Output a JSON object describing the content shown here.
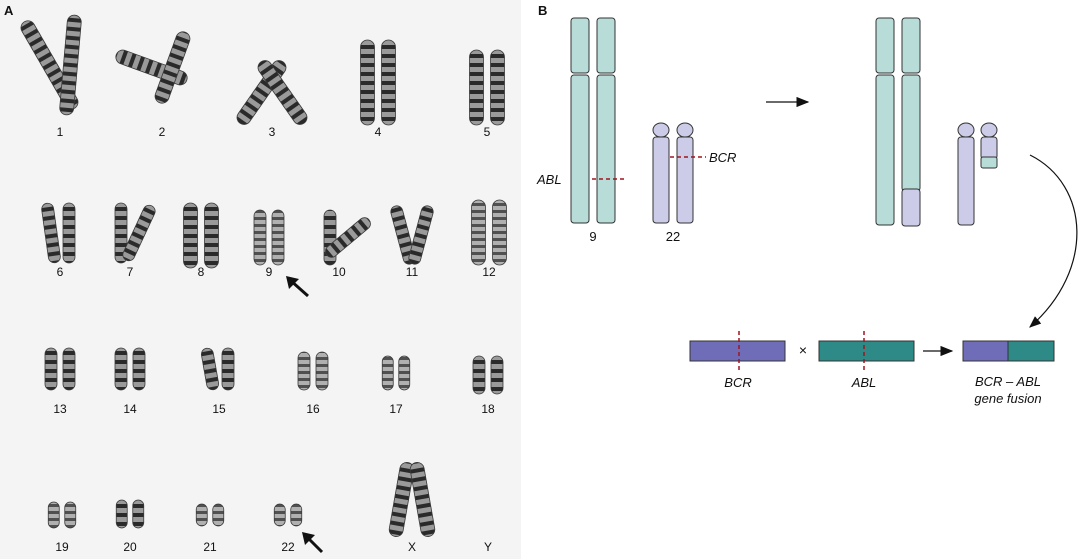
{
  "panel_a": {
    "label": "A",
    "chromosomes": [
      "1",
      "2",
      "3",
      "4",
      "5",
      "6",
      "7",
      "8",
      "9",
      "10",
      "11",
      "12",
      "13",
      "14",
      "15",
      "16",
      "17",
      "18",
      "19",
      "20",
      "21",
      "22",
      "X",
      "Y"
    ]
  },
  "panel_b": {
    "label": "B",
    "abl_label": "ABL",
    "bcr_label": "BCR",
    "chr9_label": "9",
    "chr22_label": "22",
    "times_symbol": "×",
    "bcr_gene_label": "BCR",
    "abl_gene_label": "ABL",
    "fusion_label_line1": "BCR – ABL",
    "fusion_label_line2": "gene fusion"
  },
  "colors": {
    "teal_chromosome": "#b8dcd8",
    "lilac_chromosome": "#cccce8",
    "bcr_gene": "#6f6cb8",
    "abl_gene": "#2e8a86",
    "breakpoint": "#a0141e"
  }
}
